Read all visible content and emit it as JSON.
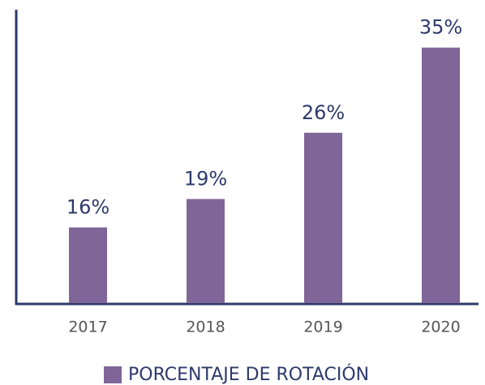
{
  "chart_data": {
    "type": "bar",
    "categories": [
      "2017",
      "2018",
      "2019",
      "2020"
    ],
    "series": [
      {
        "name": "PORCENTAJE DE ROTACIÓN",
        "color": "#7f6598",
        "values": [
          16,
          19,
          26,
          35
        ],
        "value_labels": [
          "16%",
          "19%",
          "26%",
          "35%"
        ]
      }
    ],
    "ylim": [
      8,
      39
    ]
  }
}
